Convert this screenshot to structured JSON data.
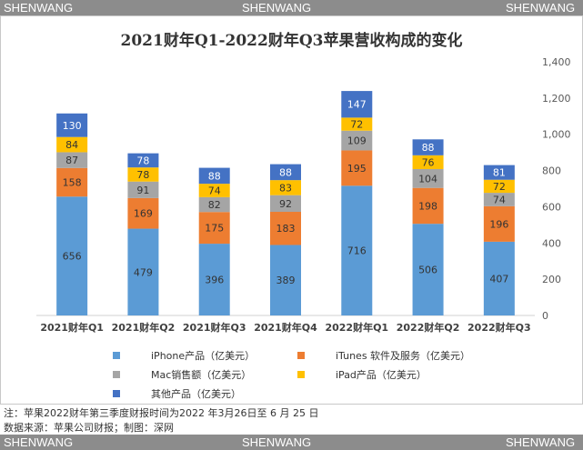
{
  "watermark": {
    "left": "SHENWANG",
    "center": "SHENWANG",
    "right": "SHENWANG"
  },
  "chart_data": {
    "type": "bar",
    "stacked": true,
    "title": "2021财年Q1-2022财年Q3苹果营收构成的变化",
    "categories": [
      "2021财年Q1",
      "2021财年Q2",
      "2021财年Q3",
      "2021财年Q4",
      "2022财年Q1",
      "2022财年Q2",
      "2022财年Q3"
    ],
    "series": [
      {
        "name": "iPhone产品（亿美元）",
        "color": "#5b9bd5",
        "label_color": "#333333",
        "values": [
          656,
          479,
          396,
          389,
          716,
          506,
          407
        ]
      },
      {
        "name": "iTunes 软件及服务（亿美元）",
        "color": "#ed7d31",
        "label_color": "#333333",
        "values": [
          158,
          169,
          175,
          183,
          195,
          198,
          196
        ]
      },
      {
        "name": "Mac销售额（亿美元）",
        "color": "#a5a5a5",
        "label_color": "#333333",
        "values": [
          87,
          91,
          82,
          92,
          109,
          104,
          74
        ]
      },
      {
        "name": "iPad产品（亿美元）",
        "color": "#ffc000",
        "label_color": "#333333",
        "values": [
          84,
          78,
          74,
          83,
          72,
          76,
          72
        ]
      },
      {
        "name": "其他产品（亿美元）",
        "color": "#4472c4",
        "label_color": "#ffffff",
        "values": [
          130,
          78,
          88,
          88,
          147,
          88,
          81
        ]
      }
    ],
    "y_axis": {
      "position": "right",
      "min": 0,
      "max": 1400,
      "ticks": [
        "0",
        "200",
        "400",
        "600",
        "800",
        "1,000",
        "1,200",
        "1,400"
      ]
    },
    "legend": "bottom"
  },
  "footnotes": {
    "note": "注：苹果2022财年第三季度财报时间为2022 年3月26日至 6 月 25 日",
    "source": "数据来源：苹果公司财报；制图：深网"
  }
}
